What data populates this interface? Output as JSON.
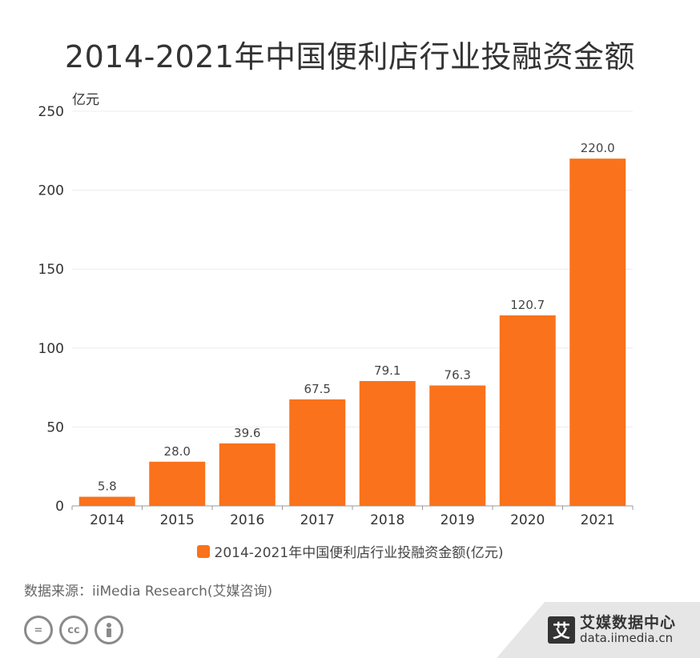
{
  "title": "2014-2021年中国便利店行业投融资金额",
  "chart_data": {
    "type": "bar",
    "title": "2014-2021年中国便利店行业投融资金额",
    "unit_label": "亿元",
    "categories": [
      "2014",
      "2015",
      "2016",
      "2017",
      "2018",
      "2019",
      "2020",
      "2021"
    ],
    "series": [
      {
        "name": "2014-2021年中国便利店行业投融资金额(亿元)",
        "values": [
          5.8,
          28.0,
          39.6,
          67.5,
          79.1,
          76.3,
          120.7,
          220.0
        ],
        "color": "#fa721b"
      }
    ],
    "value_labels": [
      "5.8",
      "28.0",
      "39.6",
      "67.5",
      "79.1",
      "76.3",
      "120.7",
      "220.0"
    ],
    "ylim": [
      0,
      250
    ],
    "yticks": [
      "0",
      "50",
      "100",
      "150",
      "200",
      "250"
    ],
    "grid": true,
    "legend_position": "bottom"
  },
  "legend": {
    "label": "2014-2021年中国便利店行业投融资金额(亿元)",
    "color": "#fa721b"
  },
  "source": "数据来源：iiMedia Research(艾媒咨询)",
  "license_icons": [
    "equals-icon",
    "cc-icon",
    "person-icon"
  ],
  "license_labels": [
    "=",
    "cc"
  ],
  "brand": {
    "logo_char": "艾",
    "name": "艾媒数据中心",
    "url": "data.iimedia.cn"
  }
}
